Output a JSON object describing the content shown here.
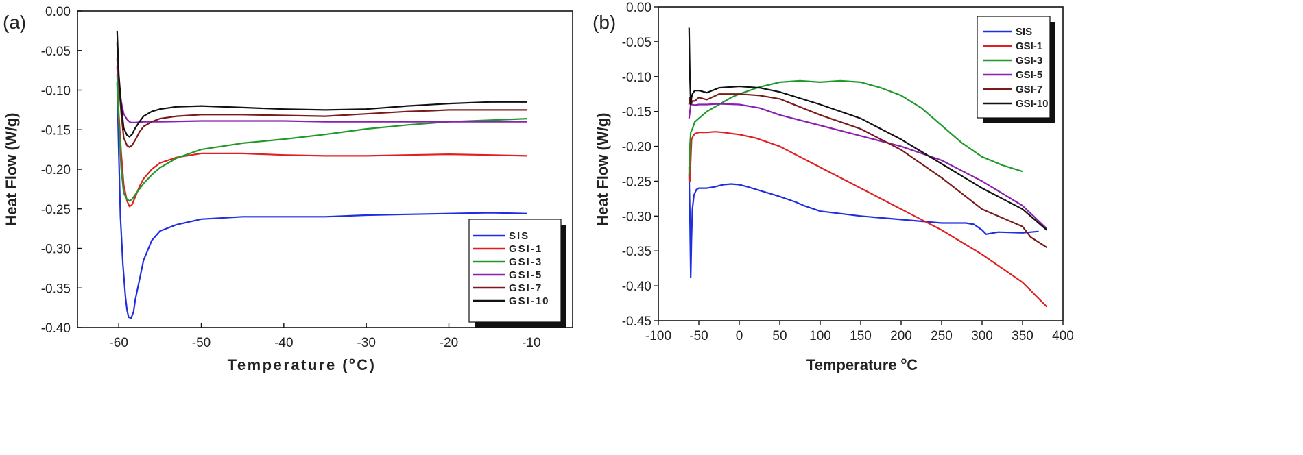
{
  "chart_data": [
    {
      "type": "line",
      "panel_label": "(a)",
      "xlabel_main": "Temperature (",
      "xlabel_sup": "o",
      "xlabel_end": "C)",
      "ylabel": "Heat Flow (W/g)",
      "xlim": [
        -65,
        -5
      ],
      "ylim": [
        -0.4,
        0.0
      ],
      "xticks": [
        -60,
        -50,
        -40,
        -30,
        -20,
        -10
      ],
      "xtick_labels": [
        "-60",
        "-50",
        "-40",
        "-30",
        "-20",
        "-10"
      ],
      "yticks": [
        0.0,
        -0.05,
        -0.1,
        -0.15,
        -0.2,
        -0.25,
        -0.3,
        -0.35,
        -0.4
      ],
      "ytick_labels": [
        "0.00",
        "-0.05",
        "-0.10",
        "-0.15",
        "-0.20",
        "-0.25",
        "-0.30",
        "-0.35",
        "-0.40"
      ],
      "legend_position": "bottom-right",
      "series": [
        {
          "name": "SIS",
          "color": "#1f2fe0",
          "x": [
            -60.2,
            -60,
            -59.8,
            -59.5,
            -59.2,
            -59,
            -58.8,
            -58.5,
            -58.2,
            -58,
            -57.5,
            -57,
            -56,
            -55,
            -53,
            -50,
            -45,
            -40,
            -35,
            -30,
            -25,
            -20,
            -15,
            -10.5
          ],
          "y": [
            -0.09,
            -0.18,
            -0.26,
            -0.32,
            -0.36,
            -0.378,
            -0.387,
            -0.388,
            -0.38,
            -0.365,
            -0.34,
            -0.315,
            -0.29,
            -0.278,
            -0.27,
            -0.263,
            -0.26,
            -0.26,
            -0.26,
            -0.258,
            -0.257,
            -0.256,
            -0.255,
            -0.256
          ]
        },
        {
          "name": "GSI-1",
          "color": "#e02020",
          "x": [
            -60.2,
            -60,
            -59.7,
            -59.4,
            -59,
            -58.7,
            -58.4,
            -58,
            -57.5,
            -57,
            -56,
            -55,
            -53,
            -50,
            -45,
            -40,
            -35,
            -30,
            -25,
            -20,
            -15,
            -10.5
          ],
          "y": [
            -0.07,
            -0.13,
            -0.18,
            -0.22,
            -0.24,
            -0.247,
            -0.245,
            -0.235,
            -0.222,
            -0.212,
            -0.2,
            -0.192,
            -0.185,
            -0.18,
            -0.18,
            -0.182,
            -0.183,
            -0.183,
            -0.182,
            -0.181,
            -0.182,
            -0.183
          ]
        },
        {
          "name": "GSI-3",
          "color": "#1f9a2a",
          "x": [
            -60.2,
            -60,
            -59.7,
            -59.4,
            -59,
            -58.7,
            -58.4,
            -58,
            -57.5,
            -57,
            -56,
            -55,
            -53,
            -50,
            -45,
            -40,
            -35,
            -30,
            -25,
            -20,
            -15,
            -10.5
          ],
          "y": [
            -0.08,
            -0.14,
            -0.2,
            -0.23,
            -0.238,
            -0.24,
            -0.238,
            -0.232,
            -0.225,
            -0.218,
            -0.207,
            -0.198,
            -0.186,
            -0.175,
            -0.167,
            -0.162,
            -0.156,
            -0.149,
            -0.144,
            -0.14,
            -0.138,
            -0.136
          ]
        },
        {
          "name": "GSI-5",
          "color": "#8a1fb0",
          "x": [
            -60.2,
            -60,
            -59.7,
            -59.4,
            -59,
            -58.7,
            -58.5,
            -58,
            -57,
            -55,
            -50,
            -45,
            -40,
            -35,
            -30,
            -25,
            -20,
            -15,
            -10.5
          ],
          "y": [
            -0.06,
            -0.09,
            -0.115,
            -0.13,
            -0.137,
            -0.14,
            -0.141,
            -0.141,
            -0.14,
            -0.14,
            -0.139,
            -0.139,
            -0.139,
            -0.14,
            -0.14,
            -0.14,
            -0.14,
            -0.14,
            -0.14
          ]
        },
        {
          "name": "GSI-7",
          "color": "#7a1a1a",
          "x": [
            -60.2,
            -60,
            -59.7,
            -59.4,
            -59,
            -58.7,
            -58.4,
            -58,
            -57.5,
            -57,
            -56,
            -55,
            -53,
            -50,
            -45,
            -40,
            -35,
            -30,
            -25,
            -22,
            -20,
            -15,
            -10.5
          ],
          "y": [
            -0.04,
            -0.09,
            -0.13,
            -0.16,
            -0.17,
            -0.172,
            -0.17,
            -0.163,
            -0.153,
            -0.146,
            -0.14,
            -0.136,
            -0.133,
            -0.131,
            -0.131,
            -0.132,
            -0.133,
            -0.13,
            -0.127,
            -0.126,
            -0.125,
            -0.125,
            -0.125
          ]
        },
        {
          "name": "GSI-10",
          "color": "#111111",
          "x": [
            -60.2,
            -60,
            -59.7,
            -59.4,
            -59,
            -58.7,
            -58.4,
            -58,
            -57.5,
            -57,
            -56,
            -55,
            -53,
            -50,
            -45,
            -40,
            -35,
            -30,
            -25,
            -20,
            -15,
            -10.5
          ],
          "y": [
            -0.025,
            -0.08,
            -0.12,
            -0.148,
            -0.157,
            -0.159,
            -0.156,
            -0.148,
            -0.14,
            -0.133,
            -0.127,
            -0.124,
            -0.121,
            -0.12,
            -0.122,
            -0.124,
            -0.125,
            -0.124,
            -0.12,
            -0.117,
            -0.115,
            -0.115
          ]
        }
      ]
    },
    {
      "type": "line",
      "panel_label": "(b)",
      "xlabel_main": "Temperature ",
      "xlabel_sup": "o",
      "xlabel_end": "C",
      "ylabel": "Heat Flow (W/g)",
      "xlim": [
        -100,
        400
      ],
      "ylim": [
        -0.45,
        0.0
      ],
      "xticks": [
        -100,
        -50,
        0,
        50,
        100,
        150,
        200,
        250,
        300,
        350,
        400
      ],
      "xtick_labels": [
        "-100",
        "-50",
        "0",
        "50",
        "100",
        "150",
        "200",
        "250",
        "300",
        "350",
        "400"
      ],
      "yticks": [
        0.0,
        -0.05,
        -0.1,
        -0.15,
        -0.2,
        -0.25,
        -0.3,
        -0.35,
        -0.4,
        -0.45
      ],
      "ytick_labels": [
        "0.00",
        "-0.05",
        "-0.10",
        "-0.15",
        "-0.20",
        "-0.25",
        "-0.30",
        "-0.35",
        "-0.40",
        "-0.45"
      ],
      "legend_position": "top-right",
      "series": [
        {
          "name": "SIS",
          "color": "#1f2fe0",
          "x": [
            -62,
            -61,
            -60,
            -59,
            -58,
            -56,
            -53,
            -50,
            -40,
            -30,
            -20,
            -10,
            0,
            10,
            30,
            50,
            70,
            80,
            100,
            150,
            200,
            250,
            280,
            290,
            300,
            305,
            320,
            350,
            370
          ],
          "y": [
            -0.24,
            -0.3,
            -0.388,
            -0.33,
            -0.29,
            -0.27,
            -0.262,
            -0.26,
            -0.26,
            -0.258,
            -0.255,
            -0.254,
            -0.255,
            -0.258,
            -0.265,
            -0.272,
            -0.28,
            -0.285,
            -0.293,
            -0.3,
            -0.305,
            -0.31,
            -0.31,
            -0.312,
            -0.32,
            -0.326,
            -0.323,
            -0.324,
            -0.322
          ]
        },
        {
          "name": "GSI-1",
          "color": "#e02020",
          "x": [
            -62,
            -61,
            -60,
            -59,
            -57,
            -55,
            -50,
            -40,
            -30,
            -20,
            0,
            20,
            50,
            100,
            150,
            200,
            250,
            300,
            350,
            380
          ],
          "y": [
            -0.23,
            -0.25,
            -0.22,
            -0.19,
            -0.185,
            -0.182,
            -0.18,
            -0.18,
            -0.179,
            -0.18,
            -0.183,
            -0.188,
            -0.2,
            -0.23,
            -0.26,
            -0.29,
            -0.32,
            -0.355,
            -0.395,
            -0.43
          ]
        },
        {
          "name": "GSI-3",
          "color": "#1f9a2a",
          "x": [
            -62,
            -61,
            -60,
            -58,
            -55,
            -50,
            -40,
            -25,
            -10,
            0,
            25,
            50,
            75,
            100,
            125,
            150,
            175,
            200,
            225,
            250,
            275,
            300,
            325,
            350
          ],
          "y": [
            -0.24,
            -0.2,
            -0.18,
            -0.175,
            -0.165,
            -0.16,
            -0.15,
            -0.14,
            -0.13,
            -0.125,
            -0.115,
            -0.108,
            -0.106,
            -0.108,
            -0.106,
            -0.108,
            -0.116,
            -0.127,
            -0.145,
            -0.17,
            -0.195,
            -0.215,
            -0.227,
            -0.236
          ]
        },
        {
          "name": "GSI-5",
          "color": "#8a1fb0",
          "x": [
            -62,
            -61,
            -60,
            -58,
            -55,
            -50,
            -40,
            -25,
            0,
            25,
            50,
            100,
            150,
            200,
            250,
            300,
            350,
            380
          ],
          "y": [
            -0.16,
            -0.15,
            -0.14,
            -0.14,
            -0.141,
            -0.14,
            -0.14,
            -0.139,
            -0.14,
            -0.145,
            -0.155,
            -0.17,
            -0.185,
            -0.2,
            -0.22,
            -0.25,
            -0.285,
            -0.318
          ]
        },
        {
          "name": "GSI-7",
          "color": "#7a1a1a",
          "x": [
            -62,
            -61,
            -60,
            -58,
            -55,
            -50,
            -40,
            -25,
            0,
            25,
            50,
            100,
            150,
            200,
            250,
            300,
            350,
            360,
            380
          ],
          "y": [
            -0.14,
            -0.13,
            -0.14,
            -0.135,
            -0.135,
            -0.13,
            -0.133,
            -0.125,
            -0.125,
            -0.127,
            -0.132,
            -0.155,
            -0.175,
            -0.205,
            -0.245,
            -0.29,
            -0.315,
            -0.33,
            -0.345
          ]
        },
        {
          "name": "GSI-10",
          "color": "#111111",
          "x": [
            -62,
            -61,
            -60,
            -59,
            -58,
            -55,
            -50,
            -40,
            -25,
            0,
            25,
            50,
            100,
            150,
            200,
            250,
            300,
            350,
            380
          ],
          "y": [
            -0.03,
            -0.1,
            -0.14,
            -0.13,
            -0.125,
            -0.12,
            -0.12,
            -0.123,
            -0.116,
            -0.114,
            -0.116,
            -0.122,
            -0.14,
            -0.16,
            -0.19,
            -0.225,
            -0.26,
            -0.29,
            -0.32
          ]
        }
      ]
    }
  ]
}
